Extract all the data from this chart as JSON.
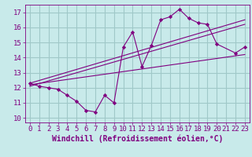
{
  "background_color": "#c8eaea",
  "grid_color": "#a0c8c8",
  "line_color": "#800080",
  "marker_color": "#800080",
  "xlabel": "Windchill (Refroidissement éolien,°C)",
  "xlim": [
    -0.5,
    23.5
  ],
  "ylim": [
    9.7,
    17.5
  ],
  "xticks": [
    0,
    1,
    2,
    3,
    4,
    5,
    6,
    7,
    8,
    9,
    10,
    11,
    12,
    13,
    14,
    15,
    16,
    17,
    18,
    19,
    20,
    21,
    22,
    23
  ],
  "yticks": [
    10,
    11,
    12,
    13,
    14,
    15,
    16,
    17
  ],
  "series1_x": [
    0,
    1,
    2,
    3,
    4,
    5,
    6,
    7,
    8,
    9,
    10,
    11,
    12,
    13,
    14,
    15,
    16,
    17,
    18,
    19,
    20,
    22,
    23
  ],
  "series1_y": [
    12.3,
    12.1,
    12.0,
    11.9,
    11.5,
    11.1,
    10.5,
    10.4,
    11.5,
    11.0,
    14.7,
    15.7,
    13.4,
    14.8,
    16.5,
    16.7,
    17.2,
    16.6,
    16.3,
    16.2,
    14.9,
    14.3,
    14.7
  ],
  "series2_x": [
    0,
    23
  ],
  "series2_y": [
    12.2,
    14.2
  ],
  "series3_x": [
    0,
    23
  ],
  "series3_y": [
    12.3,
    16.5
  ],
  "series4_x": [
    0,
    23
  ],
  "series4_y": [
    12.1,
    16.2
  ],
  "font_color": "#800080",
  "tick_labelsize": 6.5,
  "xlabel_fontsize": 7.0
}
